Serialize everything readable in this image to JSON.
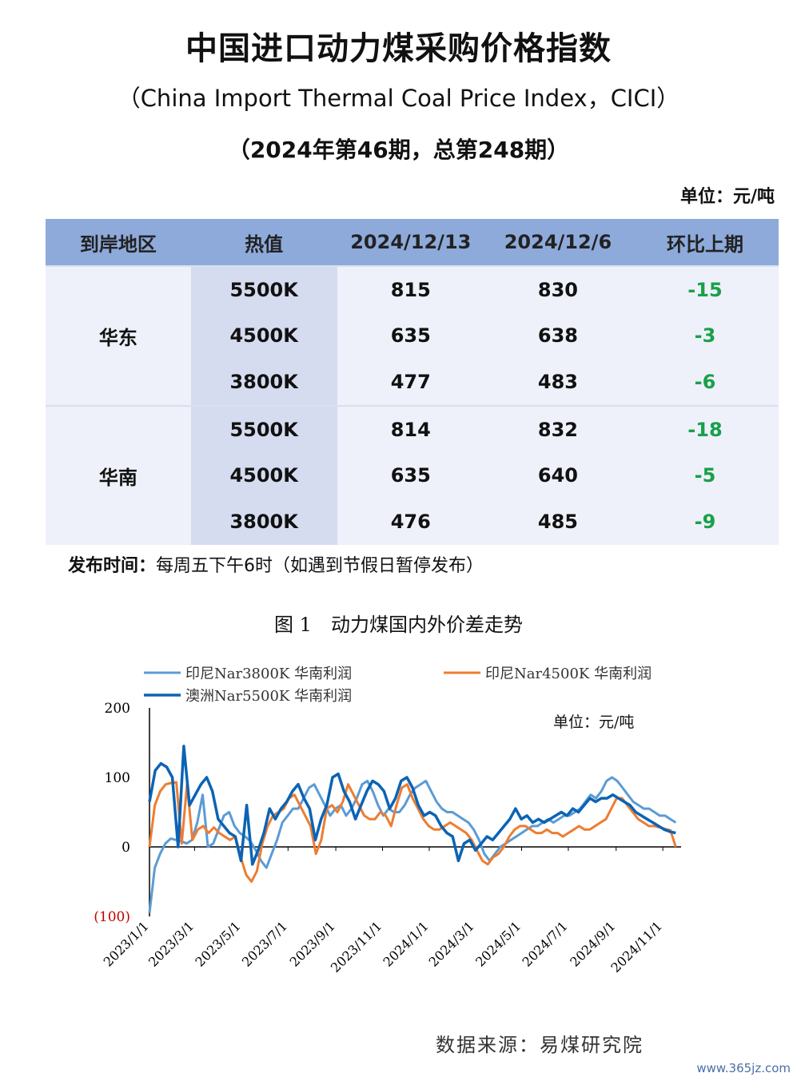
{
  "header": {
    "title": "中国进口动力煤采购价格指数",
    "subtitle": "（China Import Thermal Coal Price Index，CICI）",
    "issue": "（2024年第46期，总第248期）",
    "unit": "单位：元/吨"
  },
  "table": {
    "headers": [
      "到岸地区",
      "热值",
      "2024/12/13",
      "2024/12/6",
      "环比上期"
    ],
    "groups": [
      {
        "region": "华东",
        "rows": [
          {
            "heat": "5500K",
            "current": "815",
            "previous": "830",
            "change": "-15"
          },
          {
            "heat": "4500K",
            "current": "635",
            "previous": "638",
            "change": "-3"
          },
          {
            "heat": "3800K",
            "current": "477",
            "previous": "483",
            "change": "-6"
          }
        ]
      },
      {
        "region": "华南",
        "rows": [
          {
            "heat": "5500K",
            "current": "814",
            "previous": "832",
            "change": "-18"
          },
          {
            "heat": "4500K",
            "current": "635",
            "previous": "640",
            "change": "-5"
          },
          {
            "heat": "3800K",
            "current": "476",
            "previous": "485",
            "change": "-9"
          }
        ]
      }
    ],
    "change_color": "#19a04a",
    "header_color": "#8eaadb"
  },
  "release": {
    "label": "发布时间：",
    "text": "每周五下午6时（如遇到节假日暂停发布）"
  },
  "figure_title": "图 1　动力煤国内外价差走势",
  "chart_data": {
    "type": "line",
    "unit_label": "单位：元/吨",
    "y_tick_labels": [
      "200",
      "100",
      "0",
      "(100)"
    ],
    "y_ticks": [
      200,
      100,
      0,
      -100
    ],
    "ylim": [
      -100,
      200
    ],
    "negative_tick_color": "#c00000",
    "x_tick_labels": [
      "2023/1/1",
      "2023/3/1",
      "2023/5/1",
      "2023/7/1",
      "2023/9/1",
      "2023/11/1",
      "2024/1/1",
      "2024/3/1",
      "2024/5/1",
      "2024/7/1",
      "2024/9/1",
      "2024/11/1"
    ],
    "x_ticks_week": [
      0,
      8.4,
      17.1,
      25.8,
      34.7,
      43.4,
      52.1,
      60.6,
      69.3,
      78,
      86.9,
      95.6
    ],
    "series": [
      {
        "name": "印尼Nar3800K 华南利润",
        "color": "#5b9bd5",
        "width": 3,
        "values": [
          -95,
          -30,
          -10,
          5,
          12,
          10,
          8,
          5,
          10,
          35,
          75,
          0,
          5,
          25,
          45,
          50,
          30,
          20,
          15,
          8,
          -5,
          -20,
          -30,
          -10,
          10,
          35,
          45,
          55,
          55,
          70,
          85,
          90,
          75,
          60,
          45,
          55,
          60,
          45,
          55,
          70,
          90,
          95,
          80,
          60,
          45,
          55,
          50,
          50,
          60,
          75,
          85,
          90,
          95,
          80,
          65,
          55,
          50,
          50,
          45,
          40,
          35,
          25,
          10,
          -10,
          -20,
          -10,
          0,
          5,
          10,
          15,
          20,
          25,
          30,
          30,
          35,
          40,
          35,
          40,
          45,
          45,
          50,
          55,
          65,
          75,
          70,
          80,
          95,
          100,
          95,
          85,
          75,
          65,
          60,
          55,
          55,
          50,
          45,
          45,
          40,
          35
        ]
      },
      {
        "name": "印尼Nar4500K 华南利润",
        "color": "#ed7d31",
        "width": 3,
        "values": [
          0,
          60,
          80,
          90,
          92,
          93,
          5,
          90,
          10,
          25,
          30,
          20,
          28,
          20,
          15,
          10,
          15,
          -15,
          -40,
          -50,
          -35,
          5,
          30,
          45,
          50,
          55,
          70,
          75,
          60,
          45,
          30,
          -10,
          10,
          55,
          60,
          50,
          65,
          90,
          75,
          60,
          45,
          40,
          40,
          50,
          45,
          30,
          60,
          85,
          90,
          70,
          55,
          40,
          30,
          25,
          25,
          30,
          35,
          30,
          25,
          20,
          10,
          -5,
          -20,
          -25,
          -15,
          -10,
          0,
          15,
          25,
          30,
          30,
          25,
          20,
          20,
          25,
          20,
          20,
          15,
          20,
          25,
          30,
          25,
          25,
          30,
          35,
          40,
          55,
          70,
          70,
          60,
          50,
          40,
          35,
          30,
          30,
          28,
          26,
          24,
          0
        ]
      },
      {
        "name": "澳洲Nar5500K 华南利润",
        "color": "#0b63b5",
        "width": 3.5,
        "values": [
          65,
          110,
          120,
          115,
          100,
          0,
          145,
          60,
          75,
          90,
          100,
          80,
          40,
          30,
          20,
          15,
          -20,
          60,
          -25,
          -5,
          20,
          55,
          40,
          55,
          65,
          80,
          90,
          70,
          55,
          10,
          40,
          60,
          100,
          105,
          80,
          65,
          40,
          60,
          80,
          95,
          90,
          80,
          55,
          70,
          95,
          100,
          85,
          60,
          45,
          50,
          45,
          30,
          20,
          15,
          -20,
          5,
          10,
          -5,
          5,
          15,
          10,
          20,
          30,
          40,
          55,
          40,
          45,
          35,
          40,
          35,
          40,
          45,
          50,
          45,
          55,
          50,
          60,
          70,
          65,
          70,
          70,
          75,
          70,
          65,
          60,
          50,
          45,
          40,
          35,
          30,
          25,
          22,
          20
        ]
      }
    ]
  },
  "source": "数据来源：易煤研究院",
  "watermark": "www.365jz.com"
}
